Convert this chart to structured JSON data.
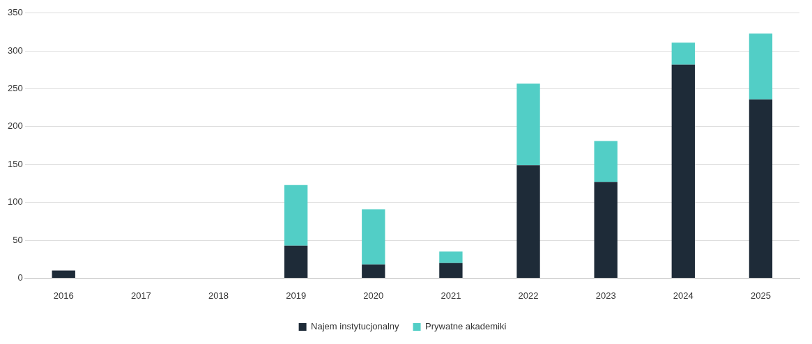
{
  "chart_data": {
    "type": "bar",
    "stacked": true,
    "categories": [
      "2016",
      "2017",
      "2018",
      "2019",
      "2020",
      "2021",
      "2022",
      "2023",
      "2024",
      "2025"
    ],
    "series": [
      {
        "name": "Najem instytucjonalny",
        "color": "#1e2b38",
        "values": [
          10,
          null,
          null,
          43,
          18,
          20,
          149,
          127,
          282,
          236
        ]
      },
      {
        "name": "Prywatne akademiki",
        "color": "#52cec6",
        "values": [
          null,
          null,
          null,
          80,
          73,
          15,
          108,
          54,
          29,
          87
        ]
      }
    ],
    "ylim": [
      0,
      350
    ],
    "yticks": [
      0,
      50,
      100,
      150,
      200,
      250,
      300,
      350
    ],
    "grid": "y",
    "legend": "bottom"
  }
}
